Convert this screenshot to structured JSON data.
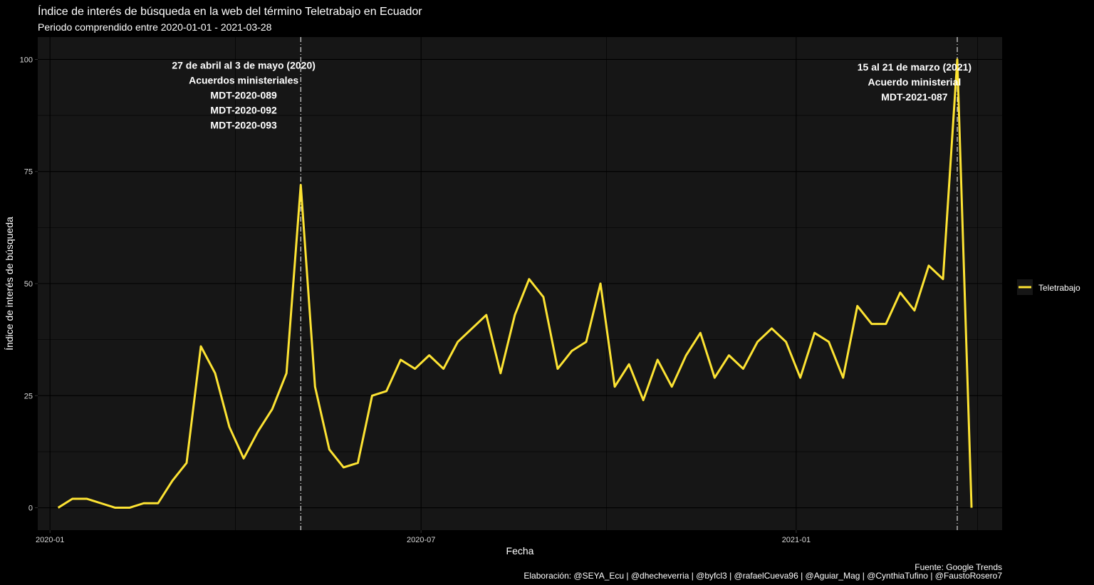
{
  "chart_data": {
    "type": "line",
    "title": "Índice de interés de búsqueda en la web del término Teletrabajo en Ecuador",
    "subtitle": "Periodo comprendido entre 2020-01-01 - 2021-03-28",
    "xlabel": "Fecha",
    "ylabel": "Índice de interés de búsqueda",
    "ylim": [
      -5,
      105
    ],
    "xlim": [
      "2019-12-26",
      "2021-04-12"
    ],
    "y_ticks": [
      0,
      25,
      50,
      75,
      100
    ],
    "x_ticks": [
      {
        "date": "2020-01-01",
        "label": "2020-01"
      },
      {
        "date": "2020-07-01",
        "label": "2020-07"
      },
      {
        "date": "2021-01-01",
        "label": "2021-01"
      }
    ],
    "grid": true,
    "legend": {
      "position": "right",
      "title": ""
    },
    "caption": [
      "Fuente: Google Trends",
      "Elaboración: @SEYA_Ecu | @dhecheverria | @byfcl3 | @rafaelCueva96 | @Aguiar_Mag | @CynthiaTufino | @FaustoRosero7"
    ],
    "colors": {
      "line": "#FDE333",
      "panel": "#161616",
      "background": "#000000",
      "grid": "#000000"
    },
    "series": [
      {
        "name": "Teletrabajo",
        "points": [
          [
            "2020-01-05",
            0
          ],
          [
            "2020-01-12",
            2
          ],
          [
            "2020-01-19",
            2
          ],
          [
            "2020-01-26",
            1
          ],
          [
            "2020-02-02",
            0
          ],
          [
            "2020-02-09",
            0
          ],
          [
            "2020-02-16",
            1
          ],
          [
            "2020-02-23",
            1
          ],
          [
            "2020-03-01",
            6
          ],
          [
            "2020-03-08",
            10
          ],
          [
            "2020-03-15",
            36
          ],
          [
            "2020-03-22",
            30
          ],
          [
            "2020-03-29",
            18
          ],
          [
            "2020-04-05",
            11
          ],
          [
            "2020-04-12",
            17
          ],
          [
            "2020-04-19",
            22
          ],
          [
            "2020-04-26",
            30
          ],
          [
            "2020-05-03",
            72
          ],
          [
            "2020-05-10",
            27
          ],
          [
            "2020-05-17",
            13
          ],
          [
            "2020-05-24",
            9
          ],
          [
            "2020-05-31",
            10
          ],
          [
            "2020-06-07",
            25
          ],
          [
            "2020-06-14",
            26
          ],
          [
            "2020-06-21",
            33
          ],
          [
            "2020-06-28",
            31
          ],
          [
            "2020-07-05",
            34
          ],
          [
            "2020-07-12",
            31
          ],
          [
            "2020-07-19",
            37
          ],
          [
            "2020-07-26",
            40
          ],
          [
            "2020-08-02",
            43
          ],
          [
            "2020-08-09",
            30
          ],
          [
            "2020-08-16",
            43
          ],
          [
            "2020-08-23",
            51
          ],
          [
            "2020-08-30",
            47
          ],
          [
            "2020-09-06",
            31
          ],
          [
            "2020-09-13",
            35
          ],
          [
            "2020-09-20",
            37
          ],
          [
            "2020-09-27",
            50
          ],
          [
            "2020-10-04",
            27
          ],
          [
            "2020-10-11",
            32
          ],
          [
            "2020-10-18",
            24
          ],
          [
            "2020-10-25",
            33
          ],
          [
            "2020-11-01",
            27
          ],
          [
            "2020-11-08",
            34
          ],
          [
            "2020-11-15",
            39
          ],
          [
            "2020-11-22",
            29
          ],
          [
            "2020-11-29",
            34
          ],
          [
            "2020-12-06",
            31
          ],
          [
            "2020-12-13",
            37
          ],
          [
            "2020-12-20",
            40
          ],
          [
            "2020-12-27",
            37
          ],
          [
            "2021-01-03",
            29
          ],
          [
            "2021-01-10",
            39
          ],
          [
            "2021-01-17",
            37
          ],
          [
            "2021-01-24",
            29
          ],
          [
            "2021-01-31",
            45
          ],
          [
            "2021-02-07",
            41
          ],
          [
            "2021-02-14",
            41
          ],
          [
            "2021-02-21",
            48
          ],
          [
            "2021-02-28",
            44
          ],
          [
            "2021-03-07",
            54
          ],
          [
            "2021-03-14",
            51
          ],
          [
            "2021-03-21",
            100
          ],
          [
            "2021-03-28",
            0
          ]
        ]
      }
    ],
    "vlines": [
      "2020-05-03",
      "2021-03-21"
    ],
    "annotations": [
      {
        "date": "2020-04-05",
        "y": 100,
        "lines": [
          "27 de abril al 3 de mayo (2020)",
          "Acuerdos ministeriales",
          "MDT-2020-089",
          "MDT-2020-092",
          "MDT-2020-093"
        ]
      },
      {
        "date": "2021-02-28",
        "y": 99.6,
        "lines": [
          "15 al 21 de marzo (2021)",
          "Acuerdo ministerial",
          "MDT-2021-087"
        ]
      }
    ]
  }
}
